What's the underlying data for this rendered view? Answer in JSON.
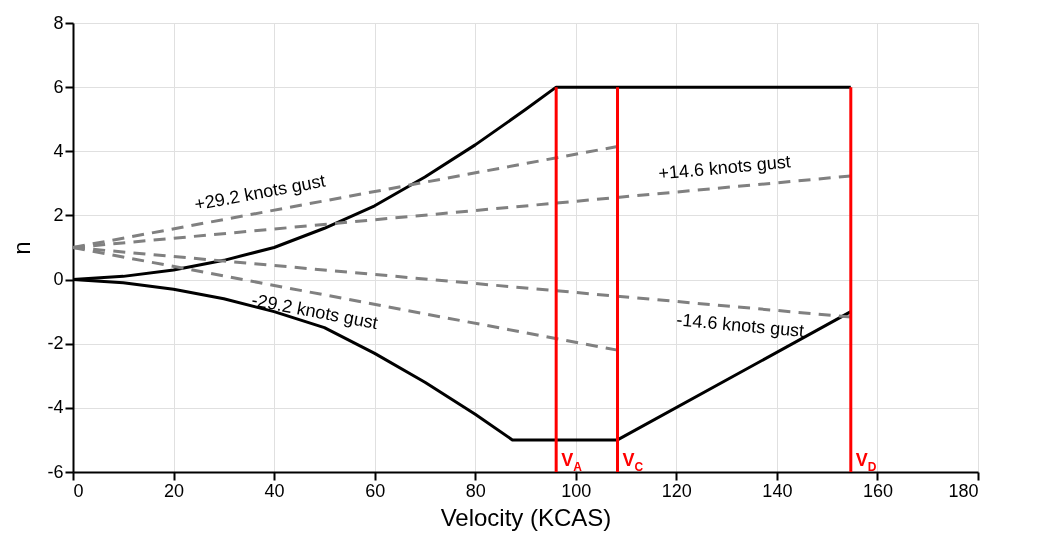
{
  "chart_data": {
    "type": "line",
    "xlabel": "Velocity (KCAS)",
    "ylabel": "n",
    "xlim": [
      0,
      180
    ],
    "ylim": [
      -6,
      8
    ],
    "xticks": [
      0,
      20,
      40,
      60,
      80,
      100,
      120,
      140,
      160,
      180
    ],
    "yticks": [
      -6,
      -4,
      -2,
      0,
      2,
      4,
      6,
      8
    ],
    "grid": true,
    "series": [
      {
        "color": "#000000",
        "x": [
          0,
          10,
          20,
          30,
          40,
          50,
          60,
          70,
          80,
          90,
          96.1,
          154.7
        ],
        "values": [
          0,
          0.1,
          0.3,
          0.6,
          1.0,
          1.6,
          2.3,
          3.2,
          4.2,
          5.3,
          6,
          6
        ]
      },
      {
        "color": "#000000",
        "x": [
          0,
          10,
          20,
          30,
          40,
          50,
          60,
          70,
          80,
          87.4,
          108.3,
          154.7
        ],
        "values": [
          0,
          -0.1,
          -0.3,
          -0.6,
          -1.0,
          -1.5,
          -2.3,
          -3.2,
          -4.2,
          -5,
          -5,
          -1
        ]
      },
      {
        "name": "+29.2 knots gust",
        "color": "#808080",
        "line_style": "dashed",
        "x": [
          0,
          108.3
        ],
        "values": [
          1,
          4.15
        ]
      },
      {
        "name": "+14.6 knots gust",
        "color": "#808080",
        "line_style": "dashed",
        "x": [
          0,
          154.7
        ],
        "values": [
          1,
          3.23
        ]
      },
      {
        "name": "-29.2 knots gust",
        "color": "#808080",
        "line_style": "dashed",
        "x": [
          0,
          108.3
        ],
        "values": [
          1,
          -2.2
        ]
      },
      {
        "name": "-14.6 knots gust",
        "color": "#808080",
        "line_style": "dashed",
        "x": [
          0,
          154.7
        ],
        "values": [
          1,
          -1.17
        ]
      },
      {
        "name": "V$_{A}$",
        "color": "#ff0000",
        "x": [
          96.1,
          96.1
        ],
        "values": [
          -6,
          6
        ]
      },
      {
        "name": "V$_{C}$",
        "color": "#ff0000",
        "x": [
          108.3,
          108.3
        ],
        "values": [
          -6,
          6
        ]
      },
      {
        "name": "V$_{D}$",
        "color": "#ff0000",
        "x": [
          154.7,
          154.7
        ],
        "values": [
          -6,
          6
        ]
      }
    ]
  }
}
